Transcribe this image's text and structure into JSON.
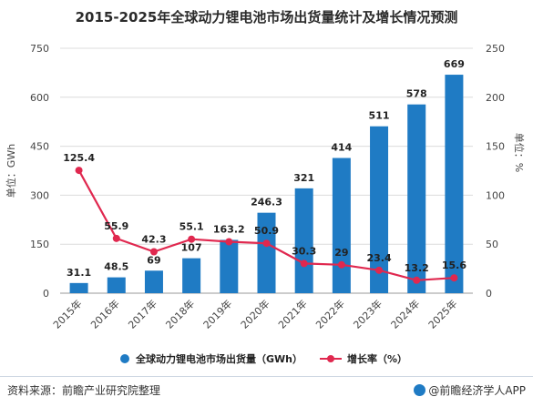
{
  "title": "2015-2025年全球动力锂电池市场出货量统计及增长情况预测",
  "chart_data": {
    "type": "bar",
    "categories": [
      "2015年",
      "2016年",
      "2017年",
      "2018年",
      "2019年",
      "2020年",
      "2021年",
      "2022年",
      "2023年",
      "2024年",
      "2025年"
    ],
    "series": [
      {
        "name": "全球动力锂电池市场出货量（GWh）",
        "type": "bar",
        "axis": "left",
        "color": "#1f7bc4",
        "values": [
          31.1,
          48.5,
          69,
          107,
          163.2,
          246.3,
          321,
          414,
          511,
          578,
          669
        ],
        "labels": [
          "31.1",
          "48.5",
          "69",
          "107",
          "163.2",
          "246.3",
          "321",
          "414",
          "511",
          "578",
          "669"
        ]
      },
      {
        "name": "增长率（%）",
        "type": "line",
        "axis": "right",
        "color": "#e0284f",
        "values": [
          125.4,
          55.9,
          42.3,
          55.1,
          52.5,
          50.9,
          30.3,
          29,
          23.4,
          13.2,
          15.6
        ],
        "labels": [
          "125.4",
          "55.9",
          "42.3",
          "55.1",
          "",
          "50.9",
          "30.3",
          "29",
          "23.4",
          "13.2",
          "15.6"
        ]
      }
    ],
    "yleft": {
      "label": "单位：GWh",
      "lim": [
        0,
        750
      ],
      "ticks": [
        "0",
        "150",
        "300",
        "450",
        "600",
        "750"
      ]
    },
    "yright": {
      "label": "单位：%",
      "lim": [
        0,
        250
      ],
      "ticks": [
        "0",
        "50",
        "100",
        "150",
        "200",
        "250"
      ]
    },
    "legend_position": "bottom"
  },
  "footer": {
    "source": "资料来源：前瞻产业研究院整理",
    "brand": "@前瞻经济学人APP"
  }
}
